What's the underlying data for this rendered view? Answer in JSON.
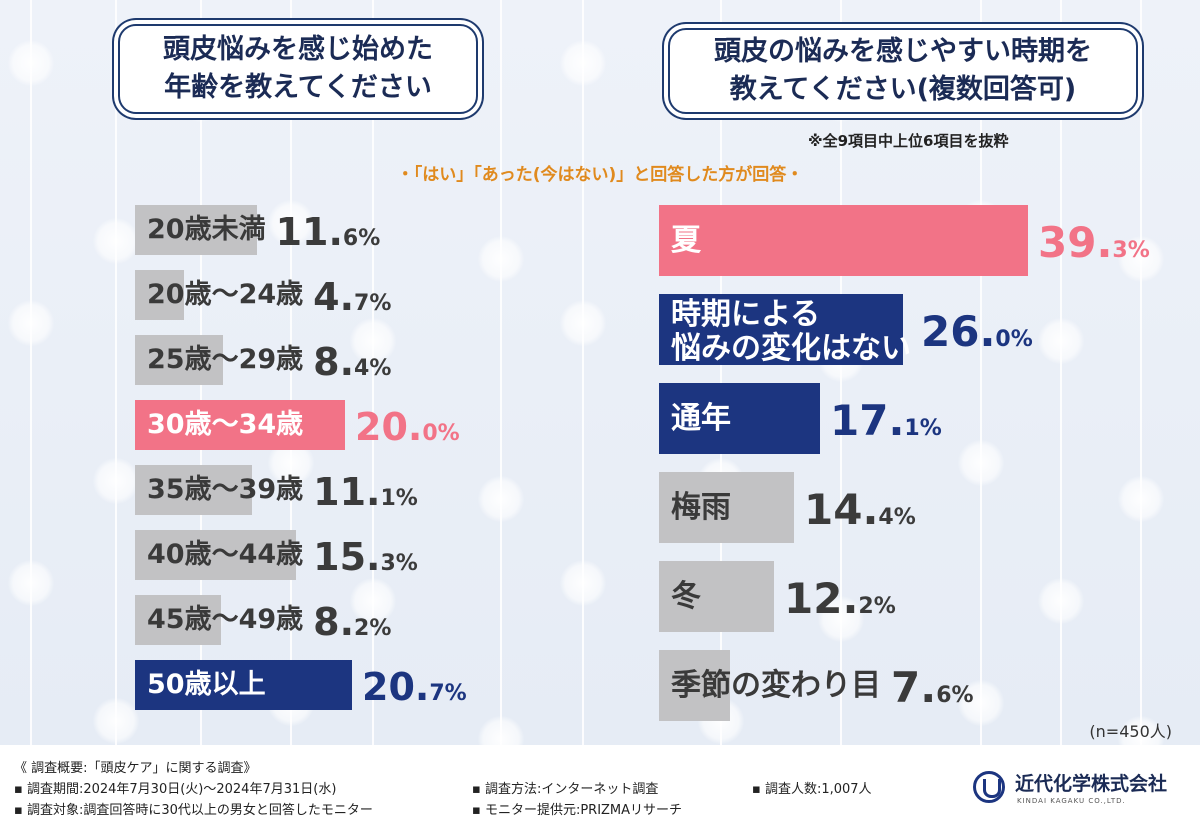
{
  "left_question": [
    "頭皮悩みを感じ始めた",
    "年齢を教えてください"
  ],
  "right_question": [
    "頭皮の悩みを感じやすい時期を",
    "教えてください(複数回答可)"
  ],
  "right_note": "※全9項目中上位6項目を抜粋",
  "subtitle": "・「はい」「あった(今はない)」と回答した方が回答・",
  "sample_size": "(n=450人)",
  "colors": {
    "pink": "#f27387",
    "navy": "#1c3580",
    "gray": "#c2c2c4",
    "question_border": "#1e3a6e",
    "subtitle": "#e08a1e"
  },
  "chart_data": [
    {
      "type": "bar",
      "orientation": "horizontal",
      "title": "頭皮悩みを感じ始めた年齢を教えてください",
      "unit": "%",
      "categories": [
        "20歳未満",
        "20歳～24歳",
        "25歳～29歳",
        "30歳～34歳",
        "35歳～39歳",
        "40歳～44歳",
        "45歳～49歳",
        "50歳以上"
      ],
      "values": [
        11.6,
        4.7,
        8.4,
        20.0,
        11.1,
        15.3,
        8.2,
        20.7
      ],
      "value_labels": [
        [
          "11.",
          "6",
          "%"
        ],
        [
          "4.",
          "7",
          "%"
        ],
        [
          "8.",
          "4",
          "%"
        ],
        [
          "20.",
          "0",
          "%"
        ],
        [
          "11.",
          "1",
          "%"
        ],
        [
          "15.",
          "3",
          "%"
        ],
        [
          "8.",
          "2",
          "%"
        ],
        [
          "20.",
          "7",
          "%"
        ]
      ],
      "highlight": [
        "gray",
        "gray",
        "gray",
        "pink",
        "gray",
        "gray",
        "gray",
        "navy"
      ]
    },
    {
      "type": "bar",
      "orientation": "horizontal",
      "title": "頭皮の悩みを感じやすい時期を教えてください(複数回答可)",
      "unit": "%",
      "categories": [
        "夏",
        "時期による悩みの変化はない",
        "通年",
        "梅雨",
        "冬",
        "季節の変わり目"
      ],
      "category_lines": [
        [
          "夏"
        ],
        [
          "時期による",
          "悩みの変化はない"
        ],
        [
          "通年"
        ],
        [
          "梅雨"
        ],
        [
          "冬"
        ],
        [
          "季節の変わり目"
        ]
      ],
      "values": [
        39.3,
        26.0,
        17.1,
        14.4,
        12.2,
        7.6
      ],
      "value_labels": [
        [
          "39.",
          "3",
          "%"
        ],
        [
          "26.",
          "0",
          "%"
        ],
        [
          "17.",
          "1",
          "%"
        ],
        [
          "14.",
          "4",
          "%"
        ],
        [
          "12.",
          "2",
          "%"
        ],
        [
          "7.",
          "6",
          "%"
        ]
      ],
      "highlight": [
        "pink",
        "navy",
        "navy",
        "gray",
        "gray",
        "gray"
      ]
    }
  ],
  "footer": {
    "overview": "《 調査概要:「頭皮ケア」に関する調査》",
    "period": "▪ 調査期間:2024年7月30日(火)～2024年7月31日(水)",
    "target": "▪ 調査対象:調査回答時に30代以上の男女と回答したモニター",
    "method": "▪ 調査方法:インターネット調査",
    "provider": "▪ モニター提供元:PRIZMAリサーチ",
    "count": "▪ 調査人数:1,007人",
    "company": "近代化学株式会社",
    "company_en": "KINDAI KAGAKU CO.,LTD."
  }
}
